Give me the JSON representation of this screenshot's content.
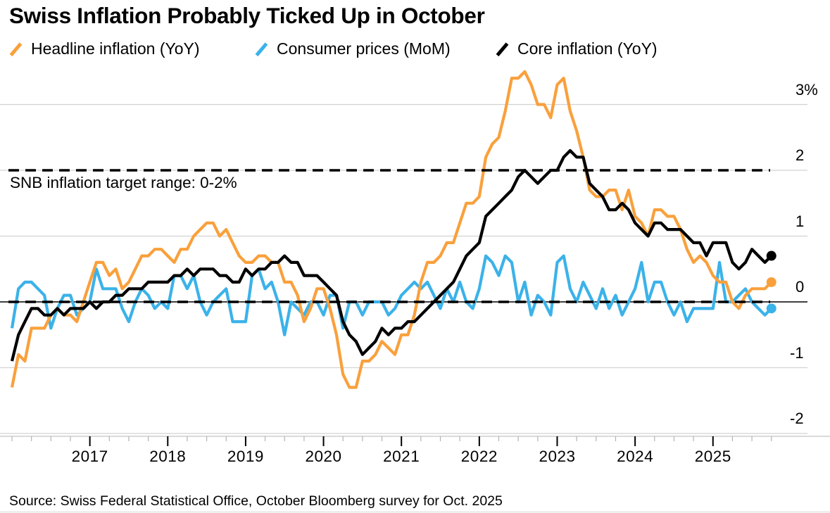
{
  "title": "Swiss Inflation Probably Ticked Up in October",
  "legend": [
    {
      "label": "Headline inflation (YoY)",
      "color": "#F9A03C"
    },
    {
      "label": "Consumer prices (MoM)",
      "color": "#3BB2E9"
    },
    {
      "label": "Core inflation (YoY)",
      "color": "#000000"
    }
  ],
  "annotation": {
    "text": "SNB inflation target range: 0-2%"
  },
  "source": "Source: Swiss Federal Statistical Office, October Bloomberg survey for Oct. 2025",
  "chart_data": {
    "type": "line",
    "frequency": "monthly",
    "x_start": "2016-01",
    "x_end": "2025-10",
    "last_point_note": "Oct. 2025 values are Bloomberg survey estimates, shown as end dots",
    "x_tick_labels": [
      "2017",
      "2018",
      "2019",
      "2020",
      "2021",
      "2022",
      "2023",
      "2024",
      "2025"
    ],
    "y_ticks": [
      {
        "label": "3%",
        "value": 3
      },
      {
        "label": "2",
        "value": 2
      },
      {
        "label": "1",
        "value": 1
      },
      {
        "label": "0",
        "value": 0
      },
      {
        "label": "-1",
        "value": -1
      },
      {
        "label": "-2",
        "value": -2
      }
    ],
    "ylim": [
      -2.5,
      3.6
    ],
    "grid": "horizontal",
    "legend_position": "top",
    "target_lines": [
      {
        "value": 2,
        "style": "dashed",
        "color": "#000000"
      },
      {
        "value": 0,
        "style": "dashed",
        "color": "#000000"
      }
    ],
    "colors": {
      "gridline": "#d2d2d2",
      "zero_line": "#000000",
      "axis_baseline": "#c4c4c4",
      "minor_tick": "#b3b3b3",
      "major_tick": "#000000"
    },
    "series": [
      {
        "name": "Headline inflation (YoY)",
        "color": "#F9A03C",
        "end_dot": true,
        "values": [
          -1.3,
          -0.8,
          -0.9,
          -0.4,
          -0.4,
          -0.4,
          -0.2,
          -0.1,
          -0.2,
          -0.2,
          -0.3,
          0.0,
          0.3,
          0.6,
          0.6,
          0.4,
          0.5,
          0.2,
          0.3,
          0.5,
          0.7,
          0.7,
          0.8,
          0.8,
          0.7,
          0.6,
          0.8,
          0.8,
          1.0,
          1.1,
          1.2,
          1.2,
          1.0,
          1.1,
          0.9,
          0.7,
          0.6,
          0.6,
          0.7,
          0.7,
          0.6,
          0.6,
          0.3,
          0.3,
          0.1,
          -0.3,
          -0.1,
          0.2,
          0.2,
          -0.1,
          -0.5,
          -1.1,
          -1.3,
          -1.3,
          -0.9,
          -0.9,
          -0.8,
          -0.6,
          -0.7,
          -0.8,
          -0.5,
          -0.5,
          -0.2,
          0.3,
          0.6,
          0.6,
          0.7,
          0.9,
          0.9,
          1.2,
          1.5,
          1.5,
          1.6,
          2.2,
          2.4,
          2.5,
          2.9,
          3.4,
          3.4,
          3.5,
          3.3,
          3.0,
          3.0,
          2.8,
          3.3,
          3.4,
          2.9,
          2.6,
          2.2,
          1.7,
          1.6,
          1.6,
          1.7,
          1.7,
          1.4,
          1.7,
          1.3,
          1.2,
          1.0,
          1.4,
          1.4,
          1.3,
          1.3,
          1.1,
          0.8,
          0.6,
          0.7,
          0.6,
          0.4,
          0.3,
          0.3,
          0.0,
          -0.1,
          0.1,
          0.2,
          0.2,
          0.2,
          0.3
        ]
      },
      {
        "name": "Consumer prices (MoM)",
        "color": "#3BB2E9",
        "end_dot": true,
        "values": [
          -0.4,
          0.2,
          0.3,
          0.3,
          0.2,
          0.1,
          -0.4,
          -0.1,
          0.1,
          0.1,
          -0.2,
          -0.1,
          0.0,
          0.5,
          0.2,
          0.2,
          0.2,
          -0.1,
          -0.3,
          0.0,
          0.2,
          0.1,
          -0.1,
          0.0,
          -0.1,
          0.4,
          0.4,
          0.2,
          0.4,
          0.0,
          -0.2,
          0.0,
          0.1,
          0.2,
          -0.3,
          -0.3,
          -0.3,
          0.4,
          0.5,
          0.2,
          0.3,
          0.0,
          -0.5,
          0.0,
          -0.1,
          -0.2,
          0.0,
          0.0,
          -0.2,
          0.1,
          0.1,
          -0.4,
          0.0,
          0.0,
          -0.2,
          0.0,
          0.0,
          0.0,
          -0.2,
          -0.1,
          0.1,
          0.2,
          0.3,
          0.2,
          0.3,
          0.1,
          -0.1,
          0.2,
          0.0,
          0.3,
          0.0,
          -0.1,
          0.2,
          0.7,
          0.6,
          0.4,
          0.7,
          0.6,
          0.0,
          0.3,
          -0.2,
          0.1,
          0.0,
          -0.2,
          0.6,
          0.7,
          0.2,
          0.0,
          0.3,
          0.1,
          -0.1,
          0.2,
          -0.1,
          0.1,
          -0.2,
          0.0,
          0.2,
          0.6,
          0.0,
          0.3,
          0.3,
          0.0,
          -0.2,
          0.0,
          -0.3,
          -0.1,
          -0.1,
          -0.1,
          -0.1,
          0.6,
          0.0,
          0.0,
          0.1,
          0.2,
          0.0,
          -0.1,
          -0.2,
          -0.1
        ]
      },
      {
        "name": "Core inflation (YoY)",
        "color": "#000000",
        "end_dot": true,
        "values": [
          -0.9,
          -0.5,
          -0.3,
          -0.1,
          -0.1,
          -0.2,
          -0.2,
          -0.1,
          -0.2,
          -0.1,
          -0.1,
          -0.1,
          0.0,
          -0.1,
          0.0,
          0.0,
          0.1,
          0.1,
          0.2,
          0.2,
          0.2,
          0.3,
          0.3,
          0.3,
          0.3,
          0.4,
          0.4,
          0.5,
          0.4,
          0.5,
          0.5,
          0.5,
          0.4,
          0.4,
          0.3,
          0.3,
          0.5,
          0.4,
          0.5,
          0.5,
          0.6,
          0.6,
          0.7,
          0.6,
          0.6,
          0.4,
          0.4,
          0.4,
          0.3,
          0.2,
          0.1,
          -0.3,
          -0.5,
          -0.6,
          -0.8,
          -0.7,
          -0.6,
          -0.4,
          -0.5,
          -0.4,
          -0.4,
          -0.3,
          -0.3,
          -0.2,
          -0.1,
          0.0,
          0.1,
          0.2,
          0.3,
          0.5,
          0.7,
          0.8,
          0.9,
          1.3,
          1.4,
          1.5,
          1.6,
          1.7,
          1.9,
          2.0,
          1.9,
          1.8,
          1.9,
          2.0,
          2.0,
          2.2,
          2.3,
          2.2,
          2.2,
          1.8,
          1.7,
          1.6,
          1.4,
          1.4,
          1.5,
          1.4,
          1.2,
          1.1,
          1.0,
          1.2,
          1.2,
          1.1,
          1.1,
          1.1,
          1.0,
          0.9,
          0.9,
          0.7,
          0.9,
          0.9,
          0.9,
          0.6,
          0.5,
          0.6,
          0.8,
          0.7,
          0.6,
          0.7
        ]
      }
    ]
  }
}
